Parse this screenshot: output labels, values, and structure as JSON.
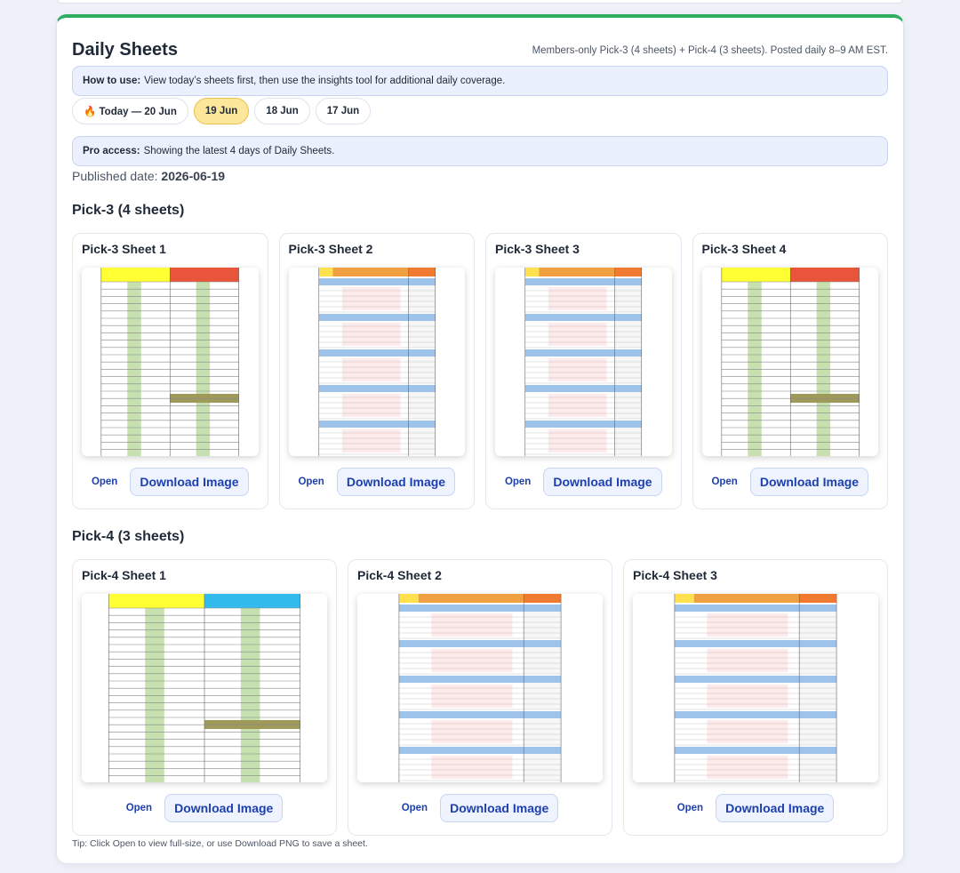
{
  "header": {
    "title": "Daily Sheets",
    "subtitle": "Members-only Pick-3 (4 sheets) + Pick-4 (3 sheets). Posted daily 8–9 AM EST."
  },
  "how_to": {
    "label": "How to use:",
    "text": "View today’s sheets first, then use the insights tool for additional daily coverage."
  },
  "tabs": [
    "🔥 Today — 20 Jun",
    "19 Jun",
    "18 Jun",
    "17 Jun"
  ],
  "active_tab": 1,
  "pro_access": {
    "label": "Pro access:",
    "text": "Showing the latest 4 days of Daily Sheets."
  },
  "published": {
    "label": "Published date:",
    "value": "2026-06-19"
  },
  "sections": [
    {
      "title": "Pick-3 (4 sheets)",
      "sheets": [
        {
          "title": "Pick-3 Sheet 1",
          "open": "Open",
          "download": "Download Image"
        },
        {
          "title": "Pick-3 Sheet 2",
          "open": "Open",
          "download": "Download Image"
        },
        {
          "title": "Pick-3 Sheet 3",
          "open": "Open",
          "download": "Download Image"
        },
        {
          "title": "Pick-3 Sheet 4",
          "open": "Open",
          "download": "Download Image"
        }
      ]
    },
    {
      "title": "Pick-4 (3 sheets)",
      "sheets": [
        {
          "title": "Pick-4 Sheet 1",
          "open": "Open",
          "download": "Download Image"
        },
        {
          "title": "Pick-4 Sheet 2",
          "open": "Open",
          "download": "Download Image"
        },
        {
          "title": "Pick-4 Sheet 3",
          "open": "Open",
          "download": "Download Image"
        }
      ]
    }
  ],
  "tip": "Tip: Click Open to view full-size, or use Download PNG to save a sheet."
}
